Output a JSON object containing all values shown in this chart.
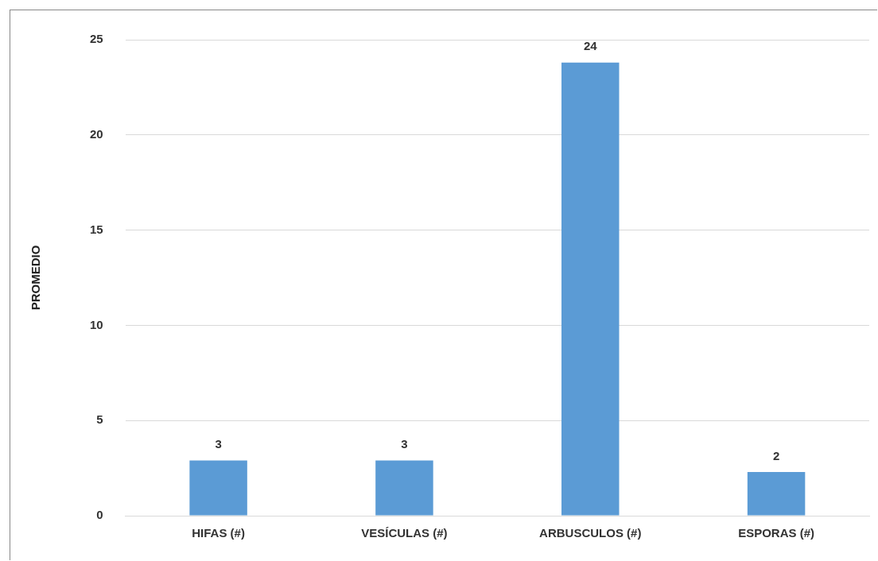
{
  "chart_data": {
    "type": "bar",
    "ylabel": "PROMEDIO",
    "categories": [
      "HIFAS (#)",
      "VESÍCULAS (#)",
      "ARBUSCULOS (#)",
      "ESPORAS (#)"
    ],
    "values": [
      2.9,
      2.9,
      23.8,
      2.3
    ],
    "value_labels": [
      "3",
      "3",
      "24",
      "2"
    ],
    "color": "#5b9bd5",
    "ylim": [
      0,
      25
    ],
    "yticks": [
      0,
      5,
      10,
      15,
      20,
      25
    ],
    "grid": "y",
    "legend": false
  }
}
